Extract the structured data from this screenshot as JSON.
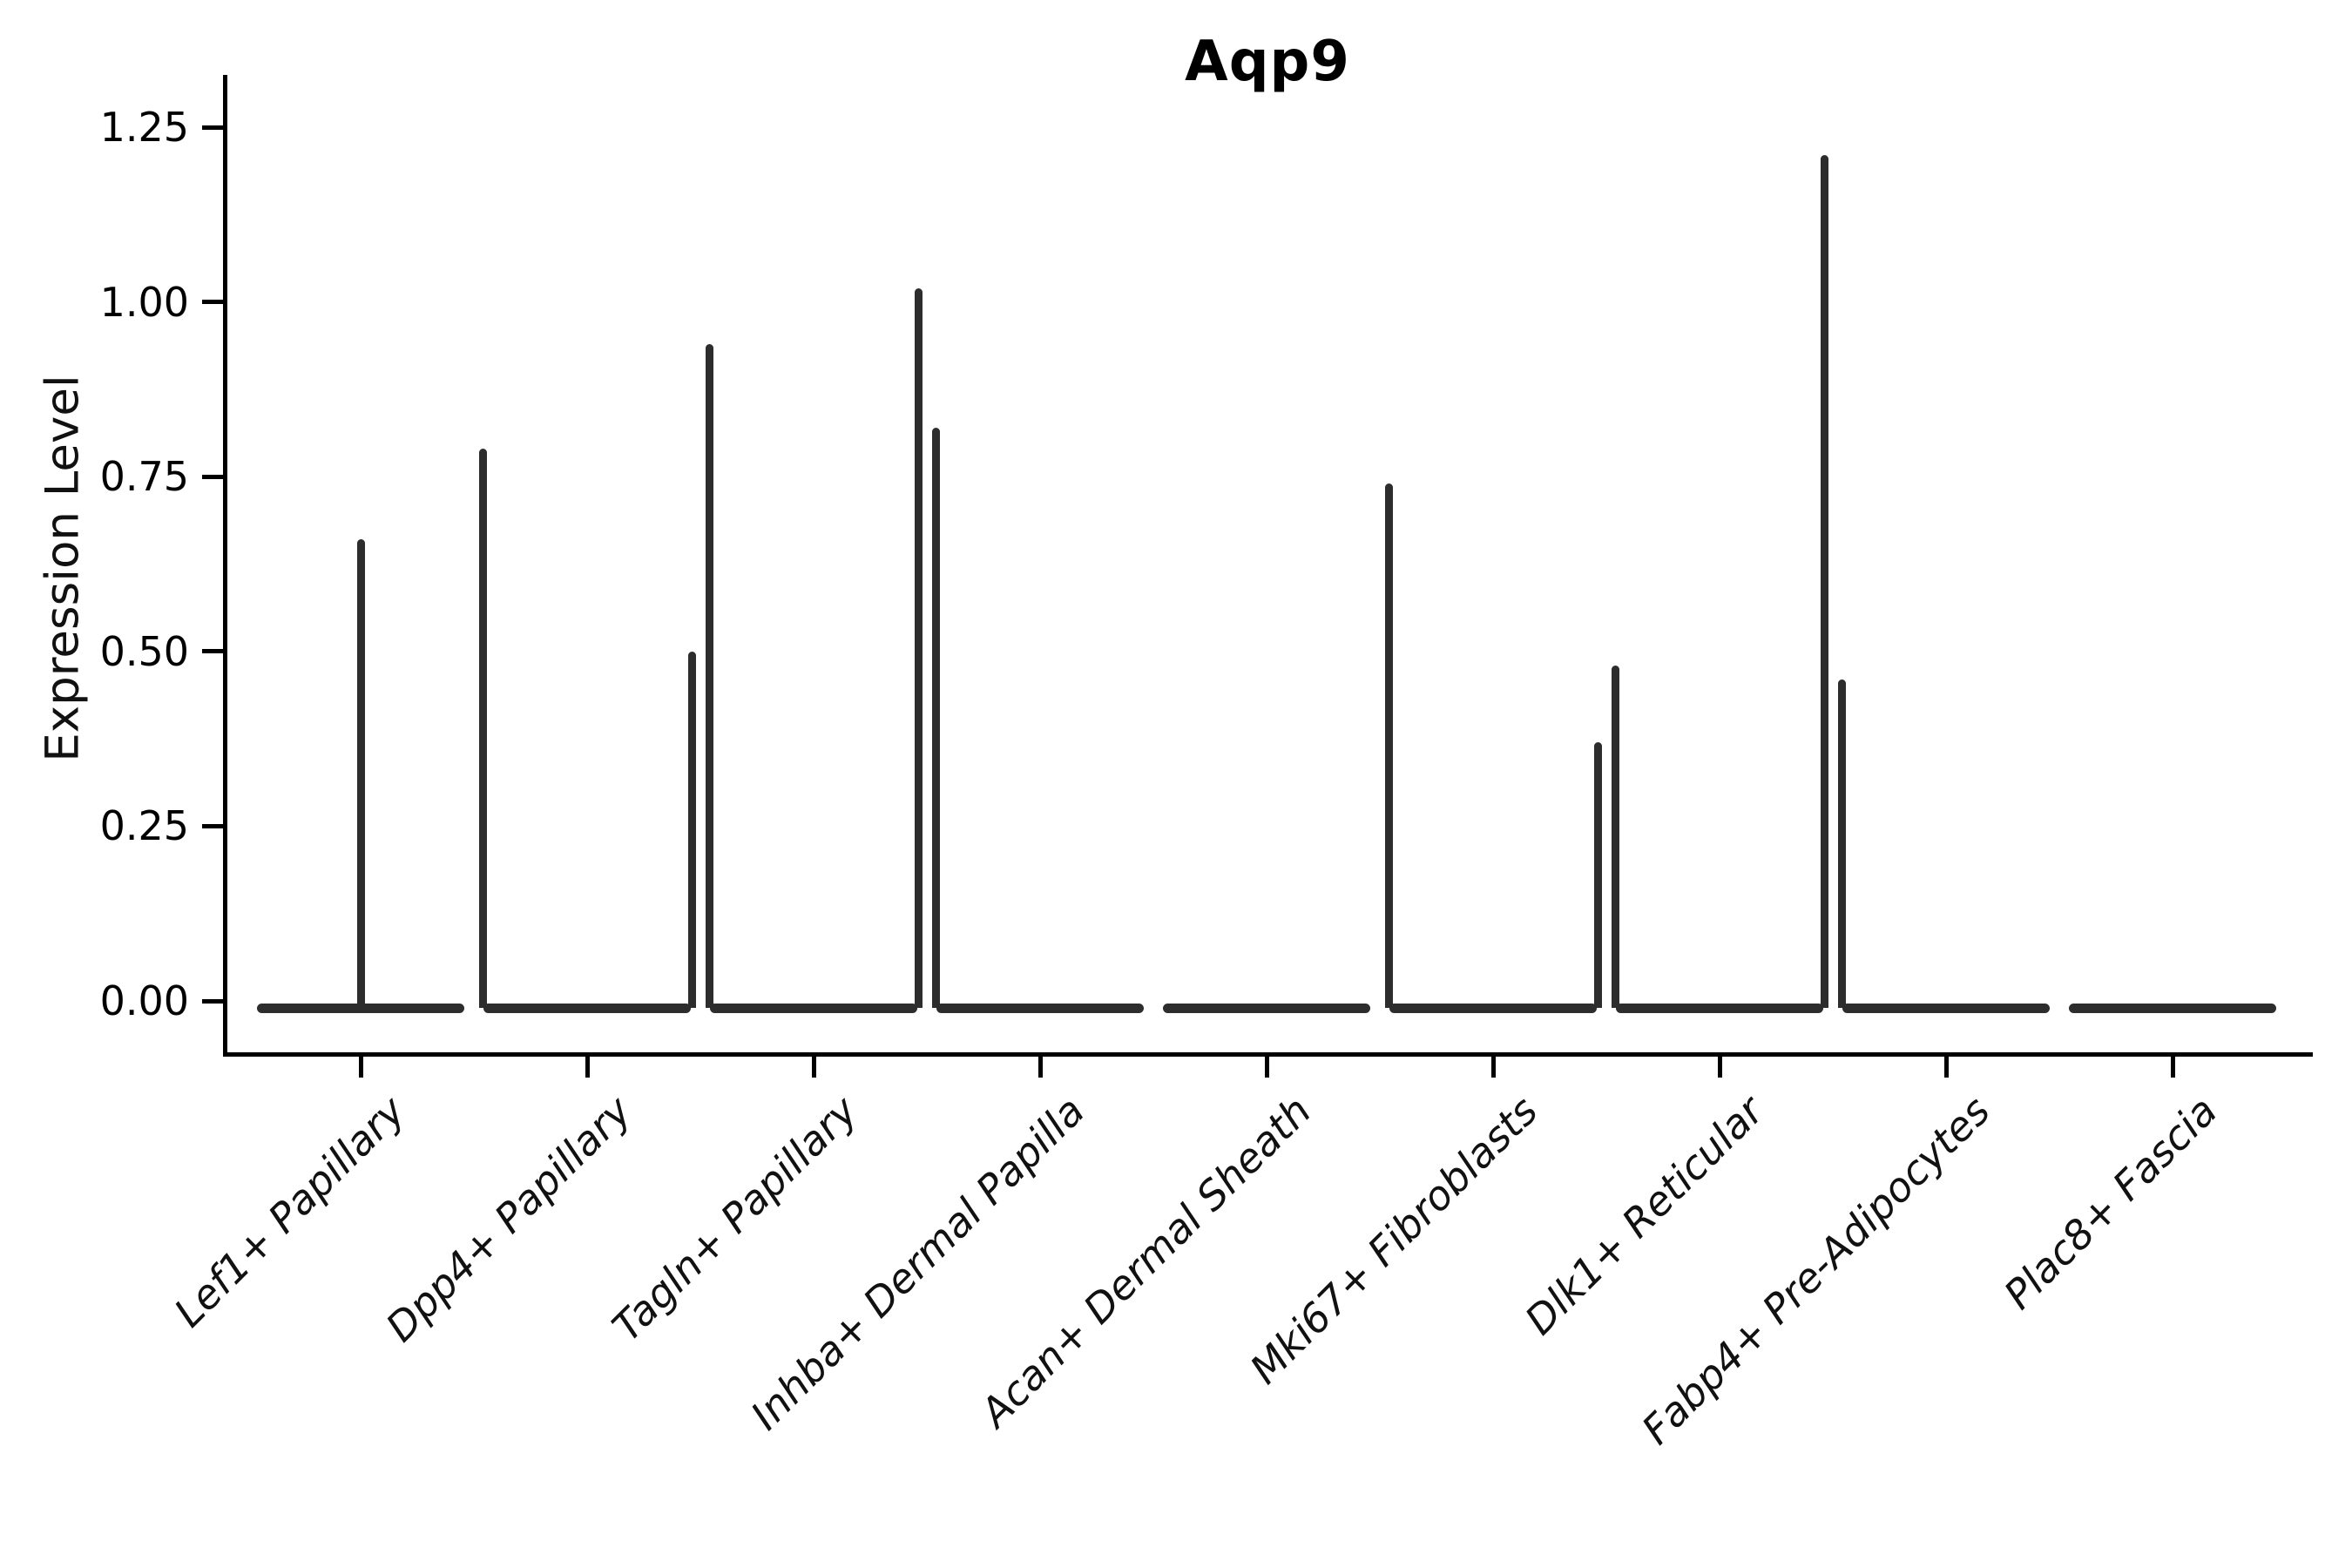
{
  "title": "Aqp9",
  "y_axis": {
    "label": "Expression Level"
  },
  "chart_data": {
    "type": "violin",
    "title": "Aqp9",
    "xlabel": "",
    "ylabel": "Expression Level",
    "ylim": [
      -0.07,
      1.32
    ],
    "yticks": [
      "0.00",
      "0.25",
      "0.50",
      "0.75",
      "1.00",
      "1.25"
    ],
    "ytick_values": [
      0,
      0.25,
      0.5,
      0.75,
      1.0,
      1.25
    ],
    "grid": false,
    "legend": null,
    "colors": {
      "violin": "#2d2d2d",
      "axis": "#000000",
      "text": "#111111"
    },
    "categories": [
      "Lef1+ Papillary",
      "Dpp4+ Papillary",
      "Tagln+ Papillary",
      "Inhba+ Dermal Papilla",
      "Acan+ Dermal Sheath",
      "Mki67+ Fibroblasts",
      "Dlk1+ Reticular",
      "Fabp4+ Pre-Adipocytes",
      "Plac8+ Fascia"
    ],
    "violins": [
      {
        "category": "Lef1+ Papillary",
        "baseline": 0,
        "spikes": [
          {
            "offset": 0,
            "max": 0.66
          }
        ]
      },
      {
        "category": "Dpp4+ Papillary",
        "baseline": 0,
        "spikes": [
          {
            "offset": -0.25,
            "max": 0.79
          },
          {
            "offset": 0.25,
            "max": 0.5
          }
        ]
      },
      {
        "category": "Tagln+ Papillary",
        "baseline": 0,
        "spikes": [
          {
            "offset": -0.25,
            "max": 0.94
          },
          {
            "offset": 0.25,
            "max": 1.02
          }
        ]
      },
      {
        "category": "Inhba+ Dermal Papilla",
        "baseline": 0,
        "spikes": [
          {
            "offset": -0.25,
            "max": 0.82
          }
        ]
      },
      {
        "category": "Acan+ Dermal Sheath",
        "baseline": 0,
        "spikes": []
      },
      {
        "category": "Mki67+ Fibroblasts",
        "baseline": 0,
        "spikes": [
          {
            "offset": -0.25,
            "max": 0.74
          },
          {
            "offset": 0.25,
            "max": 0.37
          }
        ]
      },
      {
        "category": "Dlk1+ Reticular",
        "baseline": 0,
        "spikes": [
          {
            "offset": -0.25,
            "max": 0.48
          },
          {
            "offset": 0.25,
            "max": 1.21
          }
        ]
      },
      {
        "category": "Fabp4+ Pre-Adipocytes",
        "baseline": 0,
        "spikes": [
          {
            "offset": -0.25,
            "max": 0.46
          }
        ]
      },
      {
        "category": "Plac8+ Fascia",
        "baseline": 0,
        "spikes": []
      }
    ]
  }
}
